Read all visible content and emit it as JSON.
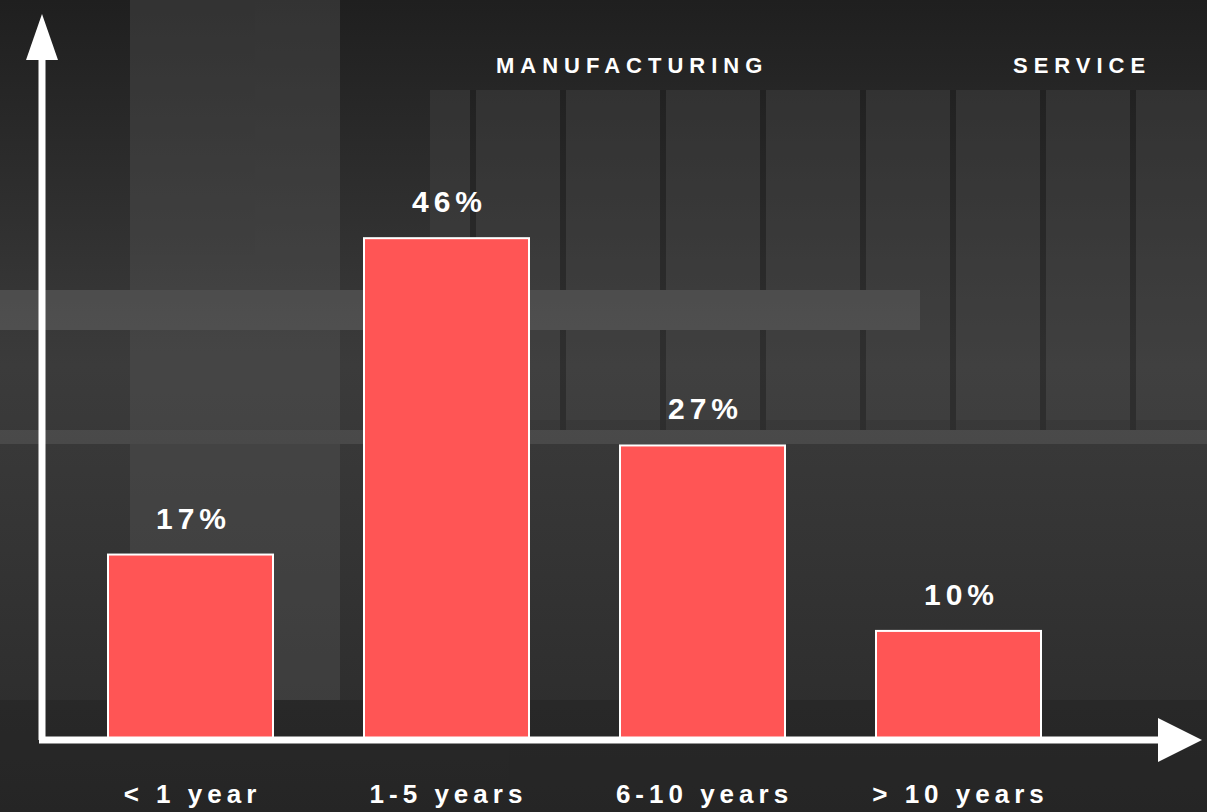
{
  "chart_data": {
    "type": "bar",
    "annotations": [
      "MANUFACTURING",
      "SERVICE"
    ],
    "categories": [
      "< 1 year",
      "1-5 years",
      "6-10 years",
      "> 10 years"
    ],
    "values": [
      17,
      46,
      27,
      10
    ],
    "value_labels": [
      "17%",
      "46%",
      "27%",
      "10%"
    ],
    "color": "#ff5555",
    "ylim": [
      0,
      66
    ],
    "data_labels": true,
    "tick_labels": "x",
    "grid": false
  }
}
